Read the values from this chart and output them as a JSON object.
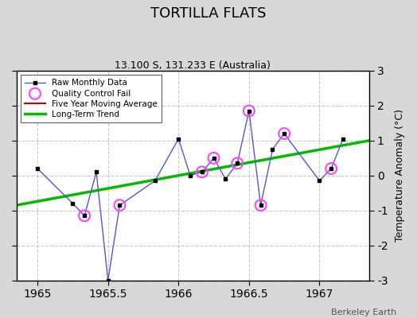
{
  "title": "TORTILLA FLATS",
  "subtitle": "13.100 S, 131.233 E (Australia)",
  "ylabel": "Temperature Anomaly (°C)",
  "watermark": "Berkeley Earth",
  "xlim": [
    1964.85,
    1967.35
  ],
  "ylim": [
    -3,
    3
  ],
  "xticks": [
    1965,
    1965.5,
    1966,
    1966.5,
    1967
  ],
  "yticks": [
    -3,
    -2,
    -1,
    0,
    1,
    2,
    3
  ],
  "background_color": "#d8d8d8",
  "plot_background": "#ffffff",
  "raw_x": [
    1965.0,
    1965.25,
    1965.333,
    1965.417,
    1965.5,
    1965.583,
    1965.833,
    1966.0,
    1966.083,
    1966.167,
    1966.25,
    1966.333,
    1966.417,
    1966.5,
    1966.583,
    1966.667,
    1966.75,
    1967.0,
    1967.083,
    1967.167
  ],
  "raw_y": [
    0.2,
    -0.8,
    -1.15,
    0.1,
    -3.0,
    -0.85,
    -0.15,
    1.05,
    0.0,
    0.1,
    0.5,
    -0.1,
    0.35,
    1.85,
    -0.85,
    0.75,
    1.2,
    -0.15,
    0.2,
    1.05
  ],
  "qc_x": [
    1965.333,
    1965.583,
    1966.167,
    1966.25,
    1966.417,
    1966.5,
    1966.583,
    1966.75,
    1967.083
  ],
  "qc_y": [
    -1.15,
    -0.85,
    0.1,
    0.5,
    0.35,
    1.85,
    -0.85,
    1.2,
    0.2
  ],
  "trend_x": [
    1964.85,
    1967.35
  ],
  "trend_y": [
    -0.85,
    1.0
  ],
  "raw_line_color": "#5555cc",
  "raw_marker_color": "#000000",
  "raw_marker_size": 3.5,
  "qc_color": "#ff44ff",
  "qc_marker_size": 10,
  "trend_color": "#00bb00",
  "trend_linewidth": 2.5,
  "five_year_color": "#cc0000",
  "legend_loc": "upper left",
  "grid_color": "#bbbbbb",
  "grid_linestyle": "--",
  "grid_alpha": 0.8,
  "title_fontsize": 13,
  "subtitle_fontsize": 9,
  "tick_label_fontsize": 9
}
